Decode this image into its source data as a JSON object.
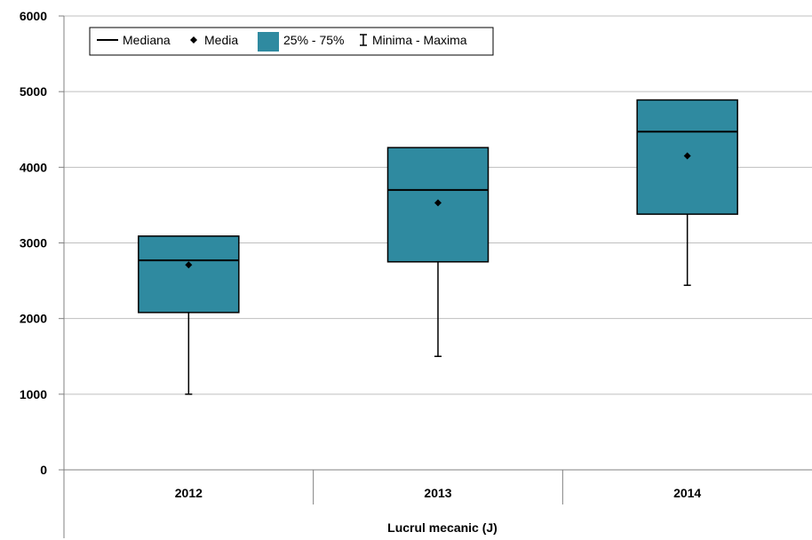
{
  "chart_data": {
    "type": "boxplot",
    "title": "",
    "xlabel": "Lucrul mecanic (J)",
    "ylabel": "",
    "ylim": [
      0,
      6000
    ],
    "yticks": [
      0,
      1000,
      2000,
      3000,
      4000,
      5000,
      6000
    ],
    "grid": true,
    "legend_position": "top-left",
    "categories": [
      "2012",
      "2013",
      "2014"
    ],
    "series": [
      {
        "category": "2012",
        "min": 1000,
        "q1": 2080,
        "median": 2770,
        "q3": 3090,
        "max": 3090,
        "mean": 2710
      },
      {
        "category": "2013",
        "min": 1500,
        "q1": 2750,
        "median": 3700,
        "q3": 4260,
        "max": 4260,
        "mean": 3530
      },
      {
        "category": "2014",
        "min": 2440,
        "q1": 3380,
        "median": 4470,
        "q3": 4890,
        "max": 4890,
        "mean": 4150
      }
    ],
    "legend": {
      "median": "Mediana",
      "mean": "Media",
      "box": "25% - 75%",
      "range": "Minima - Maxima"
    },
    "colors": {
      "box_fill": "#2f8aa0",
      "box_stroke": "#000000",
      "grid": "#bfbfbf",
      "axis": "#808080"
    }
  }
}
